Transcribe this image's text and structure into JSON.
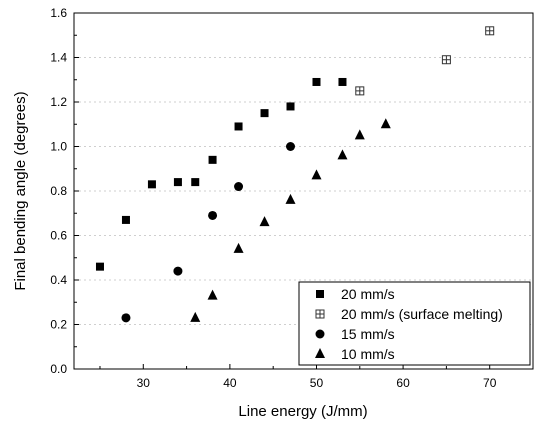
{
  "chart_data": {
    "type": "scatter",
    "xlabel": "Line energy (J/mm)",
    "ylabel": "Final bending angle (degrees)",
    "xlim": [
      22,
      75
    ],
    "ylim": [
      0.0,
      1.6
    ],
    "x_ticks": [
      30,
      40,
      50,
      60,
      70
    ],
    "y_ticks": [
      0.0,
      0.2,
      0.4,
      0.6,
      0.8,
      1.0,
      1.2,
      1.4,
      1.6
    ],
    "x_tick_labels": [
      "30",
      "40",
      "50",
      "60",
      "70"
    ],
    "y_tick_labels": [
      "0.0",
      "0.2",
      "0.4",
      "0.6",
      "0.8",
      "1.0",
      "1.2",
      "1.4",
      "1.6"
    ],
    "grid": "horizontal dotted",
    "legend_position": "bottom-right",
    "series": [
      {
        "name": "20 mm/s",
        "marker": "square",
        "color": "#000000",
        "points": [
          [
            25,
            0.46
          ],
          [
            28,
            0.67
          ],
          [
            31,
            0.83
          ],
          [
            34,
            0.84
          ],
          [
            36,
            0.84
          ],
          [
            38,
            0.94
          ],
          [
            41,
            1.09
          ],
          [
            44,
            1.15
          ],
          [
            47,
            1.18
          ],
          [
            50,
            1.29
          ],
          [
            53,
            1.29
          ]
        ]
      },
      {
        "name": "20 mm/s (surface melting)",
        "marker": "crossed-square",
        "color": "#333333",
        "points": [
          [
            55,
            1.25
          ],
          [
            65,
            1.39
          ],
          [
            70,
            1.52
          ]
        ]
      },
      {
        "name": "15 mm/s",
        "marker": "circle",
        "color": "#000000",
        "points": [
          [
            28,
            0.23
          ],
          [
            34,
            0.44
          ],
          [
            38,
            0.69
          ],
          [
            41,
            0.82
          ],
          [
            47,
            1.0
          ]
        ]
      },
      {
        "name": "10 mm/s",
        "marker": "triangle",
        "color": "#000000",
        "points": [
          [
            36,
            0.23
          ],
          [
            38,
            0.33
          ],
          [
            41,
            0.54
          ],
          [
            44,
            0.66
          ],
          [
            47,
            0.76
          ],
          [
            50,
            0.87
          ],
          [
            53,
            0.96
          ],
          [
            55,
            1.05
          ],
          [
            58,
            1.1
          ]
        ]
      }
    ]
  }
}
